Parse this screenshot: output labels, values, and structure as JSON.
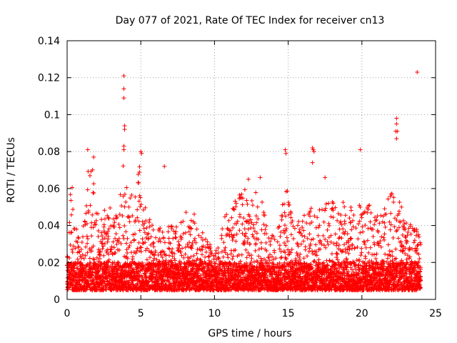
{
  "chart_data": {
    "type": "scatter",
    "title": "Day 077 of 2021, Rate Of TEC Index for receiver cn13",
    "xlabel": "GPS time / hours",
    "ylabel": "ROTI / TECUs",
    "xlim": [
      0,
      25
    ],
    "ylim": [
      0,
      0.14
    ],
    "xticks": [
      0,
      5,
      10,
      15,
      20,
      25
    ],
    "yticks": [
      0,
      0.02,
      0.04,
      0.06,
      0.08,
      0.1,
      0.12,
      0.14
    ],
    "x_tick_labels": [
      "0",
      "5",
      "10",
      "15",
      "20",
      "25"
    ],
    "y_tick_labels": [
      "0",
      "0.02",
      "0.04",
      "0.06",
      "0.08",
      "0.1",
      "0.12",
      "0.14"
    ],
    "grid": true,
    "marker": "+",
    "series_color": "#ff0000",
    "data_range_hours": [
      0,
      24
    ],
    "baseline_band": [
      0.005,
      0.02
    ],
    "notable_points": [
      {
        "x": 3.85,
        "y": 0.121
      },
      {
        "x": 3.85,
        "y": 0.114
      },
      {
        "x": 3.85,
        "y": 0.109
      },
      {
        "x": 3.9,
        "y": 0.094
      },
      {
        "x": 3.9,
        "y": 0.092
      },
      {
        "x": 3.85,
        "y": 0.083
      },
      {
        "x": 3.85,
        "y": 0.081
      },
      {
        "x": 5.0,
        "y": 0.08
      },
      {
        "x": 5.05,
        "y": 0.079
      },
      {
        "x": 6.6,
        "y": 0.072
      },
      {
        "x": 1.4,
        "y": 0.081
      },
      {
        "x": 1.8,
        "y": 0.077
      },
      {
        "x": 12.3,
        "y": 0.065
      },
      {
        "x": 13.1,
        "y": 0.066
      },
      {
        "x": 14.8,
        "y": 0.081
      },
      {
        "x": 14.85,
        "y": 0.079
      },
      {
        "x": 16.65,
        "y": 0.082
      },
      {
        "x": 16.7,
        "y": 0.081
      },
      {
        "x": 16.75,
        "y": 0.08
      },
      {
        "x": 16.65,
        "y": 0.074
      },
      {
        "x": 17.5,
        "y": 0.066
      },
      {
        "x": 19.9,
        "y": 0.081
      },
      {
        "x": 22.35,
        "y": 0.098
      },
      {
        "x": 22.35,
        "y": 0.095
      },
      {
        "x": 22.3,
        "y": 0.091
      },
      {
        "x": 22.4,
        "y": 0.091
      },
      {
        "x": 22.35,
        "y": 0.087
      },
      {
        "x": 23.75,
        "y": 0.123
      }
    ],
    "activity_envelope": [
      {
        "x": 0.0,
        "y": 0.03
      },
      {
        "x": 0.3,
        "y": 0.066
      },
      {
        "x": 0.7,
        "y": 0.035
      },
      {
        "x": 1.0,
        "y": 0.03
      },
      {
        "x": 1.4,
        "y": 0.072
      },
      {
        "x": 1.8,
        "y": 0.07
      },
      {
        "x": 2.2,
        "y": 0.045
      },
      {
        "x": 2.6,
        "y": 0.05
      },
      {
        "x": 3.0,
        "y": 0.05
      },
      {
        "x": 3.4,
        "y": 0.045
      },
      {
        "x": 3.85,
        "y": 0.075
      },
      {
        "x": 4.2,
        "y": 0.055
      },
      {
        "x": 4.6,
        "y": 0.06
      },
      {
        "x": 5.0,
        "y": 0.075
      },
      {
        "x": 5.4,
        "y": 0.05
      },
      {
        "x": 6.0,
        "y": 0.035
      },
      {
        "x": 6.6,
        "y": 0.045
      },
      {
        "x": 7.2,
        "y": 0.04
      },
      {
        "x": 7.8,
        "y": 0.045
      },
      {
        "x": 8.4,
        "y": 0.05
      },
      {
        "x": 9.0,
        "y": 0.04
      },
      {
        "x": 9.6,
        "y": 0.03
      },
      {
        "x": 10.2,
        "y": 0.028
      },
      {
        "x": 10.8,
        "y": 0.05
      },
      {
        "x": 11.4,
        "y": 0.055
      },
      {
        "x": 12.0,
        "y": 0.06
      },
      {
        "x": 12.5,
        "y": 0.058
      },
      {
        "x": 13.1,
        "y": 0.06
      },
      {
        "x": 13.6,
        "y": 0.04
      },
      {
        "x": 14.2,
        "y": 0.035
      },
      {
        "x": 14.8,
        "y": 0.065
      },
      {
        "x": 15.4,
        "y": 0.04
      },
      {
        "x": 16.0,
        "y": 0.045
      },
      {
        "x": 16.6,
        "y": 0.05
      },
      {
        "x": 17.2,
        "y": 0.05
      },
      {
        "x": 17.8,
        "y": 0.055
      },
      {
        "x": 18.4,
        "y": 0.05
      },
      {
        "x": 19.0,
        "y": 0.055
      },
      {
        "x": 19.6,
        "y": 0.045
      },
      {
        "x": 20.0,
        "y": 0.06
      },
      {
        "x": 20.6,
        "y": 0.05
      },
      {
        "x": 21.2,
        "y": 0.045
      },
      {
        "x": 21.8,
        "y": 0.055
      },
      {
        "x": 22.35,
        "y": 0.065
      },
      {
        "x": 22.9,
        "y": 0.045
      },
      {
        "x": 23.4,
        "y": 0.04
      },
      {
        "x": 24.0,
        "y": 0.04
      }
    ]
  }
}
